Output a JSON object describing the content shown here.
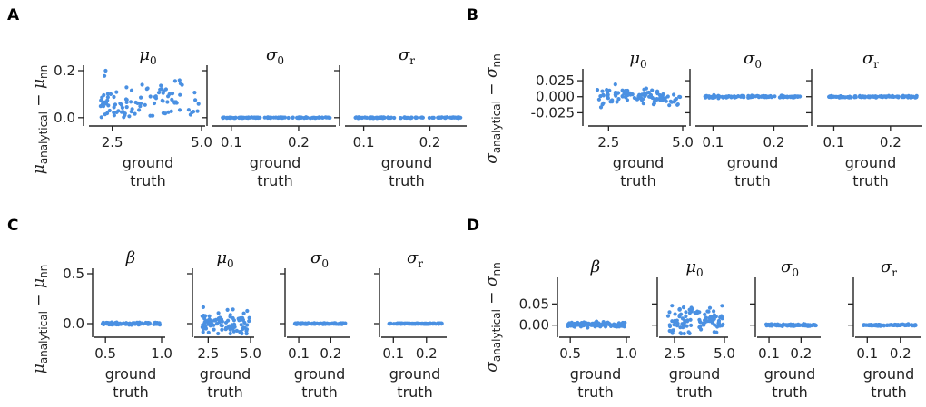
{
  "figure": {
    "panels": [
      {
        "letter": "A",
        "ylabel": {
          "base": "μ",
          "sub1": "analytical",
          "mid": " − μ",
          "sub2": "nn"
        }
      },
      {
        "letter": "B",
        "ylabel": {
          "base": "σ",
          "sub1": "analytical",
          "mid": " − σ",
          "sub2": "nn"
        }
      },
      {
        "letter": "C",
        "ylabel": {
          "base": "μ",
          "sub1": "analytical",
          "mid": " − μ",
          "sub2": "nn"
        }
      },
      {
        "letter": "D",
        "ylabel": {
          "base": "σ",
          "sub1": "analytical",
          "mid": " − σ",
          "sub2": "nn"
        }
      }
    ],
    "xlabel_line1": "ground",
    "xlabel_line2": "truth",
    "point_color": "#4a90e2"
  },
  "chart_data": [
    {
      "panel": "A",
      "type": "scatter",
      "param": "μ0",
      "title_base": "μ",
      "title_sub": "0",
      "xlim": [
        2.0,
        5.0
      ],
      "ylim": [
        -0.02,
        0.2
      ],
      "xticks": [
        2.5,
        5.0
      ],
      "xtick_labels": [
        "2.5",
        "5.0"
      ],
      "yticks": [
        0.0,
        0.2
      ],
      "ytick_labels": [
        "0.0",
        "0.2"
      ],
      "seed": 11,
      "n": 100,
      "spread": 0.045,
      "mean_shape": "hump",
      "mean_max": 0.07,
      "mean_min": 0.0
    },
    {
      "panel": "A",
      "type": "scatter",
      "param": "σ0",
      "title_base": "σ",
      "title_sub": "0",
      "xlim": [
        0.08,
        0.25
      ],
      "ylim": [
        -0.02,
        0.2
      ],
      "xticks": [
        0.1,
        0.2
      ],
      "xtick_labels": [
        "0.1",
        "0.2"
      ],
      "yticks": [
        0.0,
        0.2
      ],
      "ytick_labels": [
        "",
        ""
      ],
      "seed": 12,
      "n": 100,
      "spread": 0.001,
      "mean_shape": "flat",
      "mean_max": 0.0,
      "mean_min": 0.0
    },
    {
      "panel": "A",
      "type": "scatter",
      "param": "σr",
      "title_base": "σ",
      "title_sub": "r",
      "xlim": [
        0.08,
        0.25
      ],
      "ylim": [
        -0.02,
        0.2
      ],
      "xticks": [
        0.1,
        0.2
      ],
      "xtick_labels": [
        "0.1",
        "0.2"
      ],
      "yticks": [
        0.0,
        0.2
      ],
      "ytick_labels": [
        "",
        ""
      ],
      "seed": 13,
      "n": 100,
      "spread": 0.001,
      "mean_shape": "flat",
      "mean_max": 0.0,
      "mean_min": 0.0
    },
    {
      "panel": "B",
      "type": "scatter",
      "param": "μ0",
      "title_base": "μ",
      "title_sub": "0",
      "xlim": [
        2.0,
        5.0
      ],
      "ylim": [
        -0.04,
        0.035
      ],
      "xticks": [
        2.5,
        5.0
      ],
      "xtick_labels": [
        "2.5",
        "5.0"
      ],
      "yticks": [
        0.025,
        0.0,
        -0.025
      ],
      "ytick_labels": [
        "0.025",
        "0.000",
        "-0.025"
      ],
      "seed": 21,
      "n": 100,
      "spread": 0.006,
      "mean_shape": "drop",
      "mean_max": 0.002,
      "mean_min": -0.008
    },
    {
      "panel": "B",
      "type": "scatter",
      "param": "σ0",
      "title_base": "σ",
      "title_sub": "0",
      "xlim": [
        0.08,
        0.25
      ],
      "ylim": [
        -0.04,
        0.035
      ],
      "xticks": [
        0.1,
        0.2
      ],
      "xtick_labels": [
        "0.1",
        "0.2"
      ],
      "yticks": [
        0.025,
        0.0,
        -0.025
      ],
      "ytick_labels": [
        "",
        "",
        ""
      ],
      "seed": 22,
      "n": 100,
      "spread": 0.0008,
      "mean_shape": "flat",
      "mean_max": 0.0,
      "mean_min": 0.0
    },
    {
      "panel": "B",
      "type": "scatter",
      "param": "σr",
      "title_base": "σ",
      "title_sub": "r",
      "xlim": [
        0.08,
        0.25
      ],
      "ylim": [
        -0.04,
        0.035
      ],
      "xticks": [
        0.1,
        0.2
      ],
      "xtick_labels": [
        "0.1",
        "0.2"
      ],
      "yticks": [
        0.025,
        0.0,
        -0.025
      ],
      "ytick_labels": [
        "",
        "",
        ""
      ],
      "seed": 23,
      "n": 100,
      "spread": 0.0006,
      "mean_shape": "flat",
      "mean_max": 0.0,
      "mean_min": 0.0
    },
    {
      "panel": "C",
      "type": "scatter",
      "param": "β",
      "title_base": "β",
      "title_sub": "",
      "xlim": [
        0.45,
        1.0
      ],
      "ylim": [
        -0.1,
        0.5
      ],
      "xticks": [
        0.5,
        1.0
      ],
      "xtick_labels": [
        "0.5",
        "1.0"
      ],
      "yticks": [
        0.5,
        0.0
      ],
      "ytick_labels": [
        "0.5",
        "0.0"
      ],
      "seed": 31,
      "n": 100,
      "spread": 0.006,
      "mean_shape": "flat",
      "mean_max": 0.0,
      "mean_min": 0.0
    },
    {
      "panel": "C",
      "type": "scatter",
      "param": "μ0",
      "title_base": "μ",
      "title_sub": "0",
      "xlim": [
        2.0,
        5.0
      ],
      "ylim": [
        -0.1,
        0.5
      ],
      "xticks": [
        2.5,
        5.0
      ],
      "xtick_labels": [
        "2.5",
        "5.0"
      ],
      "yticks": [
        0.5,
        0.0
      ],
      "ytick_labels": [
        "",
        ""
      ],
      "seed": 32,
      "n": 100,
      "spread": 0.07,
      "mean_shape": "flat",
      "mean_max": 0.0,
      "mean_min": 0.0
    },
    {
      "panel": "C",
      "type": "scatter",
      "param": "σ0",
      "title_base": "σ",
      "title_sub": "0",
      "xlim": [
        0.08,
        0.25
      ],
      "ylim": [
        -0.1,
        0.5
      ],
      "xticks": [
        0.1,
        0.2
      ],
      "xtick_labels": [
        "0.1",
        "0.2"
      ],
      "yticks": [
        0.5,
        0.0
      ],
      "ytick_labels": [
        "",
        ""
      ],
      "seed": 33,
      "n": 100,
      "spread": 0.003,
      "mean_shape": "flat",
      "mean_max": 0.0,
      "mean_min": 0.0
    },
    {
      "panel": "C",
      "type": "scatter",
      "param": "σr",
      "title_base": "σ",
      "title_sub": "r",
      "xlim": [
        0.08,
        0.25
      ],
      "ylim": [
        -0.1,
        0.5
      ],
      "xticks": [
        0.1,
        0.2
      ],
      "xtick_labels": [
        "0.1",
        "0.2"
      ],
      "yticks": [
        0.5,
        0.0
      ],
      "ytick_labels": [
        "",
        ""
      ],
      "seed": 34,
      "n": 100,
      "spread": 0.002,
      "mean_shape": "flat",
      "mean_max": 0.0,
      "mean_min": 0.0
    },
    {
      "panel": "D",
      "type": "scatter",
      "param": "β",
      "title_base": "β",
      "title_sub": "",
      "xlim": [
        0.45,
        1.0
      ],
      "ylim": [
        -0.02,
        0.1
      ],
      "xticks": [
        0.5,
        1.0
      ],
      "xtick_labels": [
        "0.5",
        "1.0"
      ],
      "yticks": [
        0.05,
        0.0
      ],
      "ytick_labels": [
        "0.05",
        "0.00"
      ],
      "seed": 41,
      "n": 100,
      "spread": 0.003,
      "mean_shape": "flat",
      "mean_max": 0.001,
      "mean_min": 0.001
    },
    {
      "panel": "D",
      "type": "scatter",
      "param": "μ0",
      "title_base": "μ",
      "title_sub": "0",
      "xlim": [
        2.0,
        5.0
      ],
      "ylim": [
        -0.02,
        0.1
      ],
      "xticks": [
        2.5,
        5.0
      ],
      "xtick_labels": [
        "2.5",
        "5.0"
      ],
      "yticks": [
        0.05,
        0.0
      ],
      "ytick_labels": [
        "",
        ""
      ],
      "seed": 42,
      "n": 100,
      "spread": 0.018,
      "mean_shape": "flat",
      "mean_max": 0.012,
      "mean_min": 0.012
    },
    {
      "panel": "D",
      "type": "scatter",
      "param": "σ0",
      "title_base": "σ",
      "title_sub": "0",
      "xlim": [
        0.08,
        0.25
      ],
      "ylim": [
        -0.02,
        0.1
      ],
      "xticks": [
        0.1,
        0.2
      ],
      "xtick_labels": [
        "0.1",
        "0.2"
      ],
      "yticks": [
        0.05,
        0.0
      ],
      "ytick_labels": [
        "",
        ""
      ],
      "seed": 43,
      "n": 100,
      "spread": 0.0012,
      "mean_shape": "flat",
      "mean_max": 0.0,
      "mean_min": 0.0
    },
    {
      "panel": "D",
      "type": "scatter",
      "param": "σr",
      "title_base": "σ",
      "title_sub": "r",
      "xlim": [
        0.08,
        0.25
      ],
      "ylim": [
        -0.02,
        0.1
      ],
      "xticks": [
        0.1,
        0.2
      ],
      "xtick_labels": [
        "0.1",
        "0.2"
      ],
      "yticks": [
        0.05,
        0.0
      ],
      "ytick_labels": [
        "",
        ""
      ],
      "seed": 44,
      "n": 100,
      "spread": 0.0008,
      "mean_shape": "flat",
      "mean_max": 0.0,
      "mean_min": 0.0
    }
  ]
}
